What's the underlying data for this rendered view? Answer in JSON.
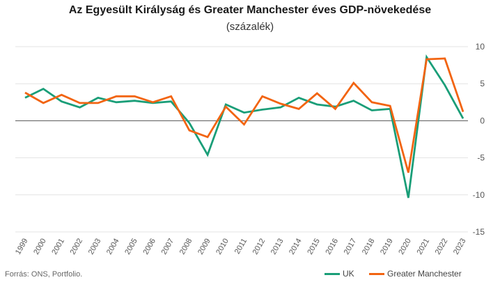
{
  "chart_data": {
    "type": "line",
    "title": "Az Egyesült Királyság és Greater Manchester éves GDP-növekedése",
    "subtitle": "(százalék)",
    "x": [
      "1999",
      "2000",
      "2001",
      "2002",
      "2003",
      "2004",
      "2005",
      "2006",
      "2007",
      "2008",
      "2009",
      "2010",
      "2011",
      "2012",
      "2013",
      "2014",
      "2015",
      "2016",
      "2017",
      "2018",
      "2019",
      "2020",
      "2021",
      "2022",
      "2023"
    ],
    "series": [
      {
        "name": "UK",
        "color": "#1a9e78",
        "values": [
          3.1,
          4.3,
          2.6,
          1.8,
          3.1,
          2.5,
          2.7,
          2.4,
          2.6,
          -0.3,
          -4.6,
          2.2,
          1.1,
          1.5,
          1.8,
          3.1,
          2.2,
          1.9,
          2.7,
          1.4,
          1.6,
          -10.4,
          8.6,
          4.8,
          0.3
        ]
      },
      {
        "name": "Greater Manchester",
        "color": "#f26411",
        "values": [
          3.8,
          2.4,
          3.5,
          2.4,
          2.4,
          3.3,
          3.3,
          2.5,
          3.3,
          -1.3,
          -2.2,
          1.9,
          -0.5,
          3.3,
          2.3,
          1.6,
          3.7,
          1.6,
          5.1,
          2.5,
          2.0,
          -7.0,
          8.3,
          8.4,
          1.2
        ]
      }
    ],
    "ylim": [
      -15,
      10
    ],
    "yticks": [
      -15,
      -10,
      -5,
      0,
      5,
      10
    ],
    "ytick_labels": [
      "-15",
      "-10",
      "-5",
      "0",
      "5",
      "10"
    ],
    "grid": true,
    "legend": "bottom-right",
    "xlabel": "",
    "ylabel": ""
  },
  "source": "Forrás:  ONS, Portfolio."
}
